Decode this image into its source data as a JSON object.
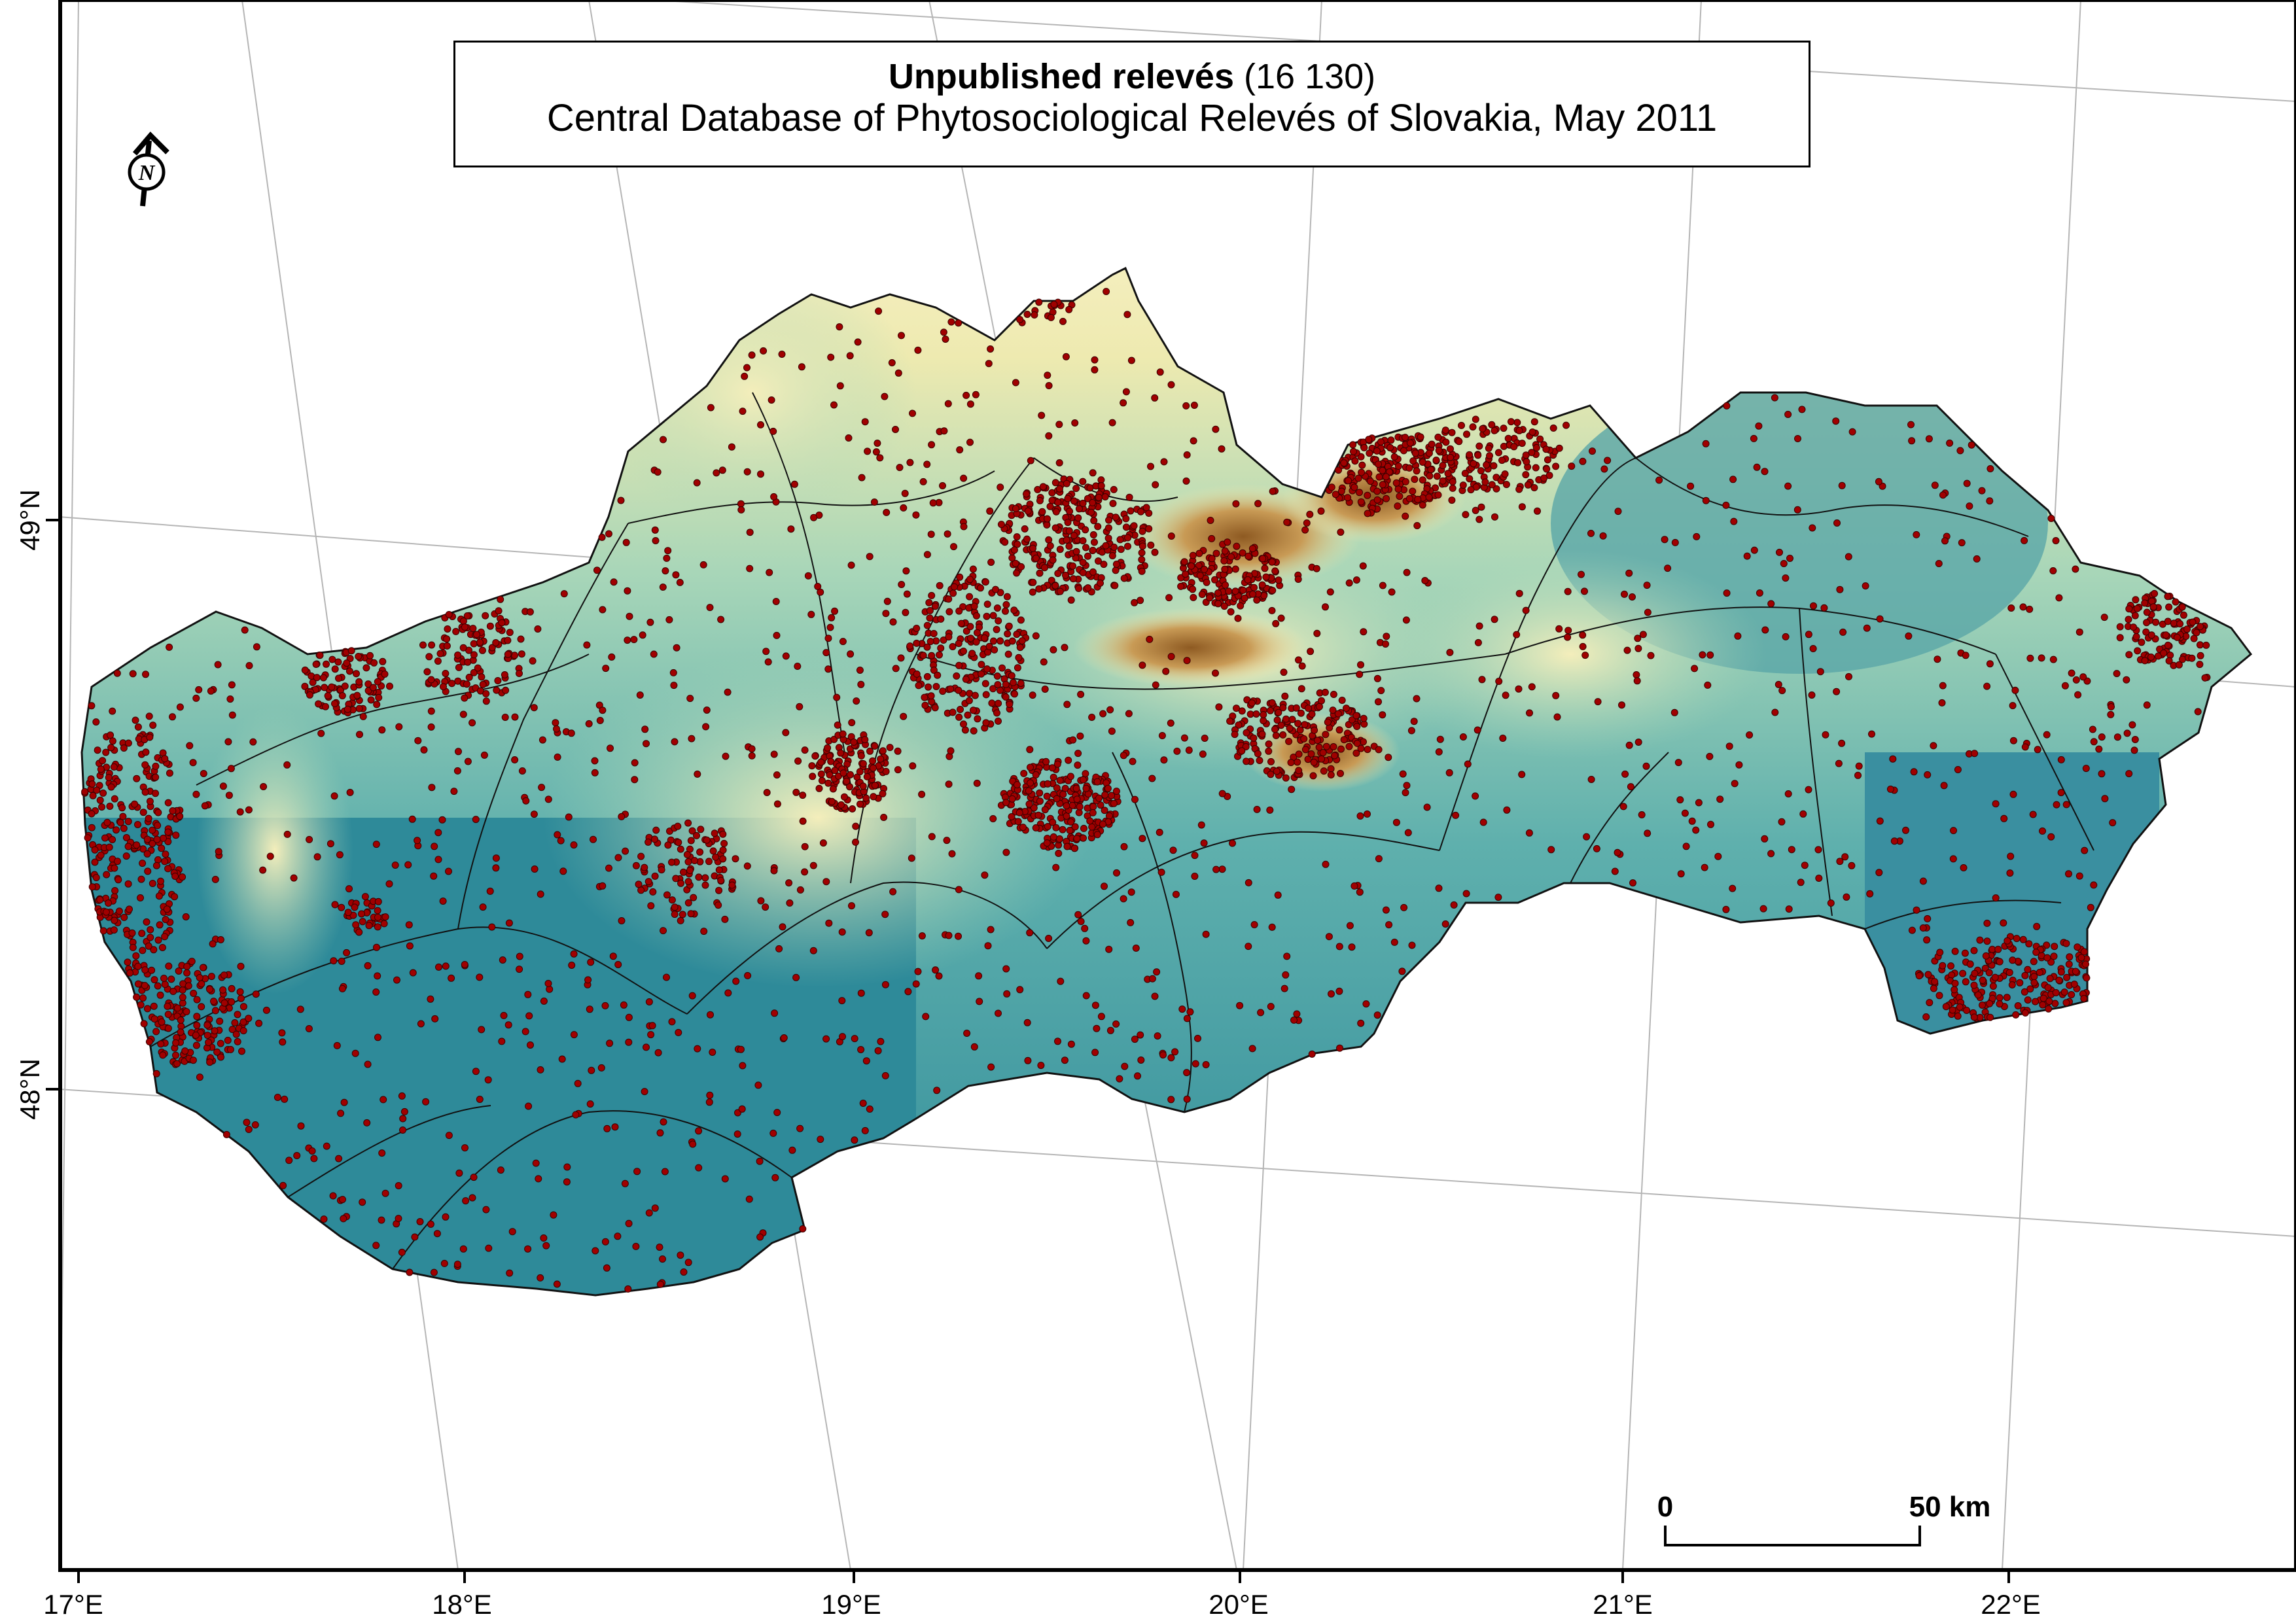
{
  "title": {
    "bold": "Unpublished relevés",
    "count": "(16 130)",
    "subtitle": "Central Database of Phytosociological Relevés of Slovakia, May 2011"
  },
  "north_arrow": {
    "letter": "N",
    "icon": "north-arrow-icon"
  },
  "axes": {
    "x_ticks": [
      "17°E",
      "18°E",
      "19°E",
      "20°E",
      "21°E",
      "22°E"
    ],
    "y_ticks": [
      "49°N",
      "48°N"
    ]
  },
  "scale_bar": {
    "start": "0",
    "end": "50 km"
  },
  "colors": {
    "lowland": "#2e8a99",
    "mid": "#9fd0b8",
    "upland": "#f2ecb4",
    "highland": "#a7752c",
    "points": "#a00000",
    "grid": "#b5b5b5"
  },
  "map": {
    "country": "Slovakia",
    "relevé_count": 16130
  }
}
